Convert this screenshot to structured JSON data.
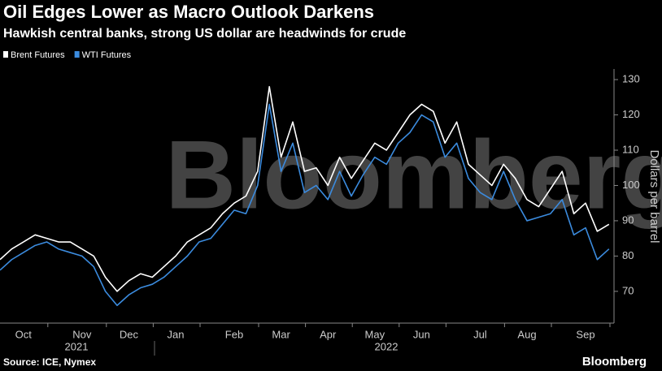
{
  "chart_data": {
    "type": "line",
    "title": "Oil Edges Lower as Macro Outlook Darkens",
    "subtitle": "Hawkish central banks, strong US dollar are headwinds for crude",
    "y_label": "Dollars per barrel",
    "watermark": "Bloomberg",
    "source": "Source: ICE, Nymex",
    "logo": "Bloomberg",
    "years": [
      "2021",
      "2022"
    ],
    "categories": [
      null,
      null,
      "Oct",
      null,
      null,
      null,
      null,
      "Nov",
      null,
      null,
      null,
      "Dec",
      null,
      null,
      null,
      "Jan",
      null,
      null,
      null,
      null,
      "Feb",
      null,
      null,
      null,
      "Mar",
      null,
      null,
      null,
      "Apr",
      null,
      null,
      null,
      "May",
      null,
      null,
      null,
      "Jun",
      null,
      null,
      null,
      null,
      "Jul",
      null,
      null,
      null,
      "Aug",
      null,
      null,
      null,
      null,
      "Sep",
      null,
      null
    ],
    "series": [
      {
        "name": "Brent Futures",
        "color": "#ffffff",
        "values": [
          79,
          82,
          84,
          86,
          85,
          84,
          84,
          82,
          80,
          74,
          70,
          73,
          75,
          74,
          77,
          80,
          84,
          86,
          88,
          92,
          95,
          97,
          104,
          128,
          108,
          118,
          104,
          105,
          100,
          108,
          102,
          107,
          112,
          110,
          115,
          120,
          123,
          121,
          112,
          118,
          106,
          103,
          100,
          106,
          102,
          96,
          94,
          99,
          104,
          92,
          95,
          87,
          89
        ]
      },
      {
        "name": "WTI Futures",
        "color": "#3b8bde",
        "values": [
          76,
          79,
          81,
          83,
          84,
          82,
          81,
          80,
          77,
          70,
          66,
          69,
          71,
          72,
          74,
          77,
          80,
          84,
          85,
          89,
          93,
          92,
          100,
          123,
          104,
          112,
          98,
          100,
          96,
          104,
          97,
          103,
          108,
          106,
          112,
          115,
          120,
          118,
          108,
          112,
          102,
          98,
          96,
          104,
          96,
          90,
          91,
          92,
          96,
          86,
          88,
          79,
          82
        ]
      }
    ],
    "ylim": [
      61,
      133
    ],
    "yticks": [
      70,
      80,
      90,
      100,
      110,
      120,
      130
    ],
    "grid": false
  }
}
